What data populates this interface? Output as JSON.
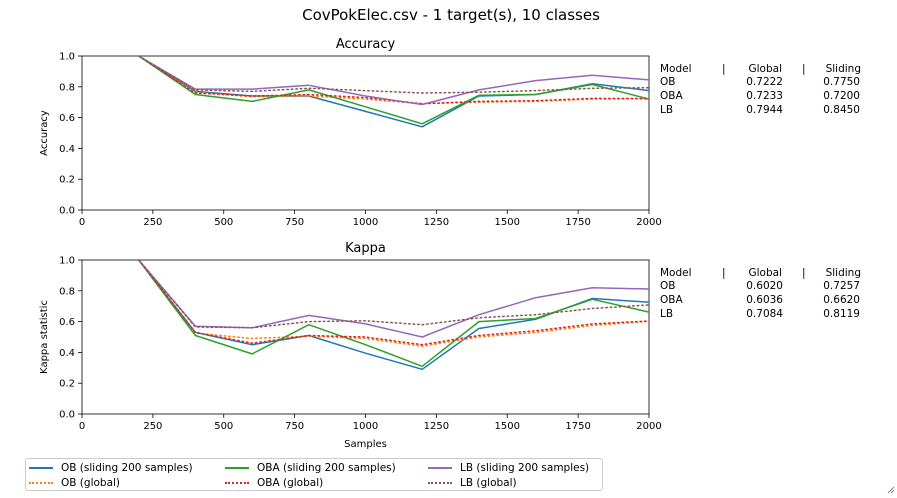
{
  "figure_title": "CovPokElec.csv - 1 target(s), 10 classes",
  "colors": {
    "blue": "#1f77b4",
    "orange": "#ff7f0e",
    "green": "#2ca02c",
    "red": "#d62728",
    "purple": "#9467bd",
    "brown": "#8c564b"
  },
  "chart_data": [
    {
      "type": "line",
      "title": "Accuracy",
      "xlabel": "",
      "ylabel": "Accuracy",
      "xlim": [
        0,
        2000
      ],
      "ylim": [
        0.0,
        1.0
      ],
      "xticks": [
        0,
        250,
        500,
        750,
        1000,
        1250,
        1500,
        1750,
        2000
      ],
      "yticks": [
        0.0,
        0.2,
        0.4,
        0.6,
        0.8,
        1.0
      ],
      "x": [
        200,
        400,
        600,
        800,
        1000,
        1200,
        1400,
        1600,
        1800,
        2000
      ],
      "series": [
        {
          "name": "OB  (sliding 200 samples)",
          "color": "blue",
          "style": "solid",
          "values": [
            1.0,
            0.77,
            0.74,
            0.74,
            0.64,
            0.54,
            0.74,
            0.75,
            0.82,
            0.775
          ]
        },
        {
          "name": "OB (global)",
          "color": "orange",
          "style": "dotted",
          "values": [
            1.0,
            0.765,
            0.735,
            0.74,
            0.72,
            0.69,
            0.7,
            0.705,
            0.72,
            0.7222
          ]
        },
        {
          "name": "OBA  (sliding 200 samples)",
          "color": "green",
          "style": "solid",
          "values": [
            1.0,
            0.75,
            0.705,
            0.78,
            0.67,
            0.56,
            0.745,
            0.75,
            0.815,
            0.72
          ]
        },
        {
          "name": "OBA (global)",
          "color": "red",
          "style": "dotted",
          "values": [
            1.0,
            0.76,
            0.74,
            0.75,
            0.73,
            0.69,
            0.705,
            0.71,
            0.725,
            0.7233
          ]
        },
        {
          "name": "LB  (sliding 200 samples)",
          "color": "purple",
          "style": "solid",
          "values": [
            1.0,
            0.785,
            0.785,
            0.81,
            0.74,
            0.685,
            0.78,
            0.84,
            0.875,
            0.845
          ]
        },
        {
          "name": "LB (global)",
          "color": "brown",
          "style": "dotted",
          "values": [
            1.0,
            0.78,
            0.77,
            0.79,
            0.775,
            0.76,
            0.765,
            0.775,
            0.79,
            0.7944
          ]
        }
      ],
      "table": {
        "header": [
          "Model",
          "|",
          "Global",
          "|",
          "Sliding"
        ],
        "rows": [
          [
            "OB",
            "0.7222",
            "0.7750"
          ],
          [
            "OBA",
            "0.7233",
            "0.7200"
          ],
          [
            "LB",
            "0.7944",
            "0.8450"
          ]
        ]
      }
    },
    {
      "type": "line",
      "title": "Kappa",
      "xlabel": "Samples",
      "ylabel": "Kappa statistic",
      "xlim": [
        0,
        2000
      ],
      "ylim": [
        0.0,
        1.0
      ],
      "xticks": [
        0,
        250,
        500,
        750,
        1000,
        1250,
        1500,
        1750,
        2000
      ],
      "yticks": [
        0.0,
        0.2,
        0.4,
        0.6,
        0.8,
        1.0
      ],
      "x": [
        200,
        400,
        600,
        800,
        1000,
        1200,
        1400,
        1600,
        1800,
        2000
      ],
      "series": [
        {
          "name": "OB  (sliding 200 samples)",
          "color": "blue",
          "style": "solid",
          "values": [
            1.0,
            0.53,
            0.45,
            0.51,
            0.395,
            0.29,
            0.555,
            0.615,
            0.75,
            0.7257
          ]
        },
        {
          "name": "OB (global)",
          "color": "orange",
          "style": "dotted",
          "values": [
            1.0,
            0.525,
            0.49,
            0.505,
            0.49,
            0.44,
            0.5,
            0.53,
            0.575,
            0.602
          ]
        },
        {
          "name": "OBA  (sliding 200 samples)",
          "color": "green",
          "style": "solid",
          "values": [
            1.0,
            0.51,
            0.39,
            0.58,
            0.45,
            0.31,
            0.6,
            0.62,
            0.745,
            0.662
          ]
        },
        {
          "name": "OBA (global)",
          "color": "red",
          "style": "dotted",
          "values": [
            1.0,
            0.53,
            0.46,
            0.51,
            0.5,
            0.45,
            0.51,
            0.54,
            0.585,
            0.6036
          ]
        },
        {
          "name": "LB  (sliding 200 samples)",
          "color": "purple",
          "style": "solid",
          "values": [
            1.0,
            0.57,
            0.56,
            0.64,
            0.585,
            0.5,
            0.645,
            0.755,
            0.82,
            0.8119
          ]
        },
        {
          "name": "LB (global)",
          "color": "brown",
          "style": "dotted",
          "values": [
            1.0,
            0.565,
            0.56,
            0.6,
            0.605,
            0.58,
            0.625,
            0.645,
            0.685,
            0.7084
          ]
        }
      ],
      "table": {
        "header": [
          "Model",
          "|",
          "Global",
          "|",
          "Sliding"
        ],
        "rows": [
          [
            "OB",
            "0.6020",
            "0.7257"
          ],
          [
            "OBA",
            "0.6036",
            "0.6620"
          ],
          [
            "LB",
            "0.7084",
            "0.8119"
          ]
        ]
      }
    }
  ],
  "legend": [
    {
      "label": "OB  (sliding 200 samples)",
      "color": "blue",
      "style": "solid"
    },
    {
      "label": "OB (global)",
      "color": "orange",
      "style": "dotted"
    },
    {
      "label": "OBA  (sliding 200 samples)",
      "color": "green",
      "style": "solid"
    },
    {
      "label": "OBA (global)",
      "color": "red",
      "style": "dotted"
    },
    {
      "label": "LB  (sliding 200 samples)",
      "color": "purple",
      "style": "solid"
    },
    {
      "label": "LB (global)",
      "color": "brown",
      "style": "dotted"
    }
  ]
}
